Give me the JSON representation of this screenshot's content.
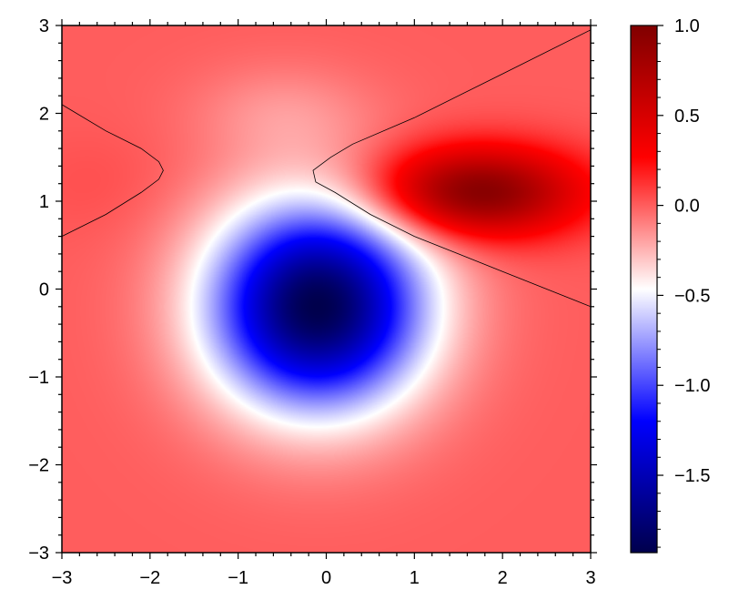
{
  "chart_data": {
    "type": "heatmap",
    "title": "",
    "xlabel": "",
    "ylabel": "",
    "xlim": [
      -3,
      3
    ],
    "ylim": [
      -3,
      3
    ],
    "x_ticks": [
      -3,
      -2,
      -1,
      0,
      1,
      2,
      3
    ],
    "y_ticks": [
      -3,
      -2,
      -1,
      0,
      1,
      2,
      3
    ],
    "x_tick_labels": [
      "−3",
      "−2",
      "−1",
      "0",
      "1",
      "2",
      "3"
    ],
    "y_tick_labels": [
      "−3",
      "−2",
      "−1",
      "0",
      "1",
      "2",
      "3"
    ],
    "colormap": "seismic",
    "colormap_stops": [
      "#00004c",
      "#0000ff",
      "#ffffff",
      "#ff0000",
      "#800000"
    ],
    "colorbar": {
      "range": [
        -1.93,
        1.0
      ],
      "ticks": [
        -1.5,
        -1.0,
        -0.5,
        0.0,
        0.5,
        1.0
      ],
      "tick_labels": [
        "−1.5",
        "−1.0",
        "−0.5",
        "0.0",
        "0.5",
        "1.0"
      ]
    },
    "features": [
      {
        "kind": "minimum",
        "x": -0.1,
        "y": -0.2,
        "value": -1.93
      },
      {
        "kind": "maximum",
        "x": 1.7,
        "y": 1.1,
        "value": 1.0
      },
      {
        "kind": "weak-minimum",
        "x": -0.5,
        "y": 2.0,
        "value": -0.15
      },
      {
        "kind": "weak-maximum",
        "x": -2.6,
        "y": 1.2,
        "value": 0.04
      }
    ],
    "contour_level": 0.0,
    "contours": [
      {
        "name": "zero-contour-left",
        "points": [
          [
            -3.0,
            2.1
          ],
          [
            -2.5,
            1.8
          ],
          [
            -2.1,
            1.6
          ],
          [
            -1.9,
            1.45
          ],
          [
            -1.85,
            1.35
          ],
          [
            -1.9,
            1.25
          ],
          [
            -2.1,
            1.1
          ],
          [
            -2.5,
            0.85
          ],
          [
            -3.0,
            0.6
          ]
        ]
      },
      {
        "name": "zero-contour-right",
        "points": [
          [
            3.0,
            2.95
          ],
          [
            2.0,
            2.45
          ],
          [
            1.0,
            1.95
          ],
          [
            0.3,
            1.65
          ],
          [
            0.05,
            1.5
          ],
          [
            -0.15,
            1.35
          ],
          [
            -0.12,
            1.22
          ],
          [
            0.1,
            1.1
          ],
          [
            0.5,
            0.85
          ],
          [
            1.0,
            0.6
          ],
          [
            2.0,
            0.2
          ],
          [
            3.0,
            -0.2
          ]
        ]
      }
    ]
  }
}
